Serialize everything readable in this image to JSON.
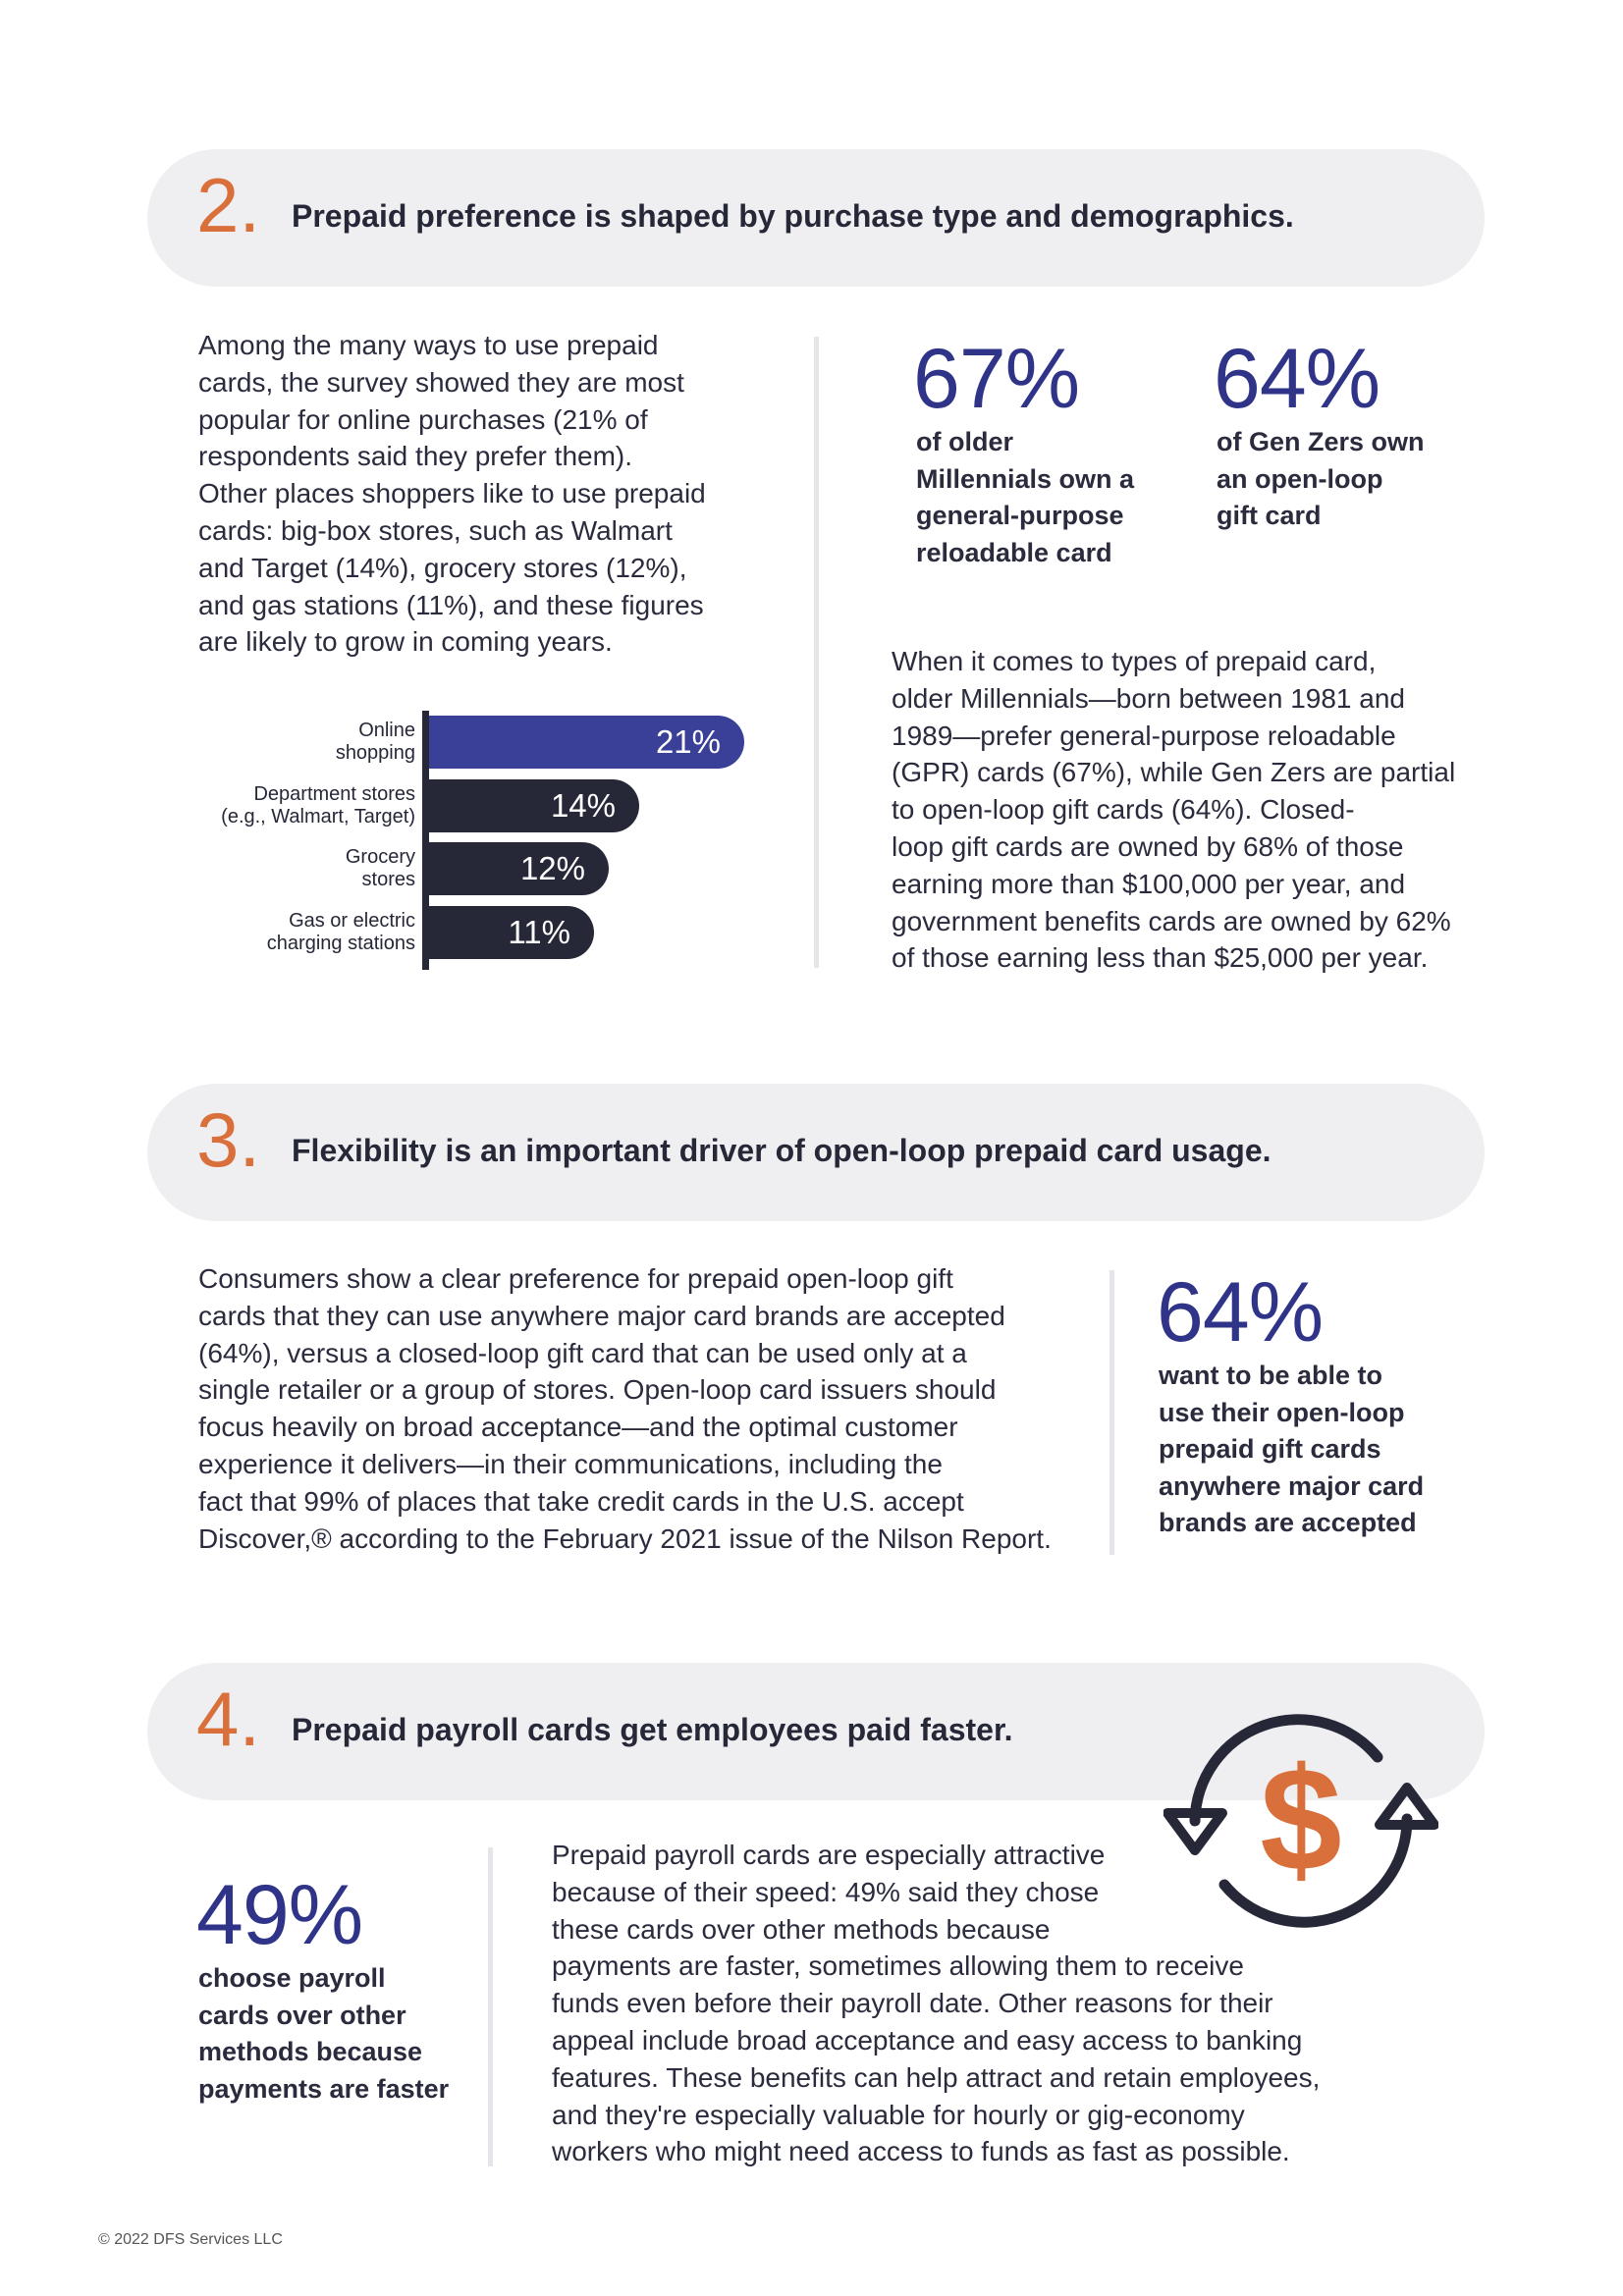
{
  "section2": {
    "number": "2.",
    "title": "Prepaid preference is shaped by purchase type and demographics.",
    "body_lines": [
      "Among the many ways to use prepaid",
      "cards, the survey showed they are most",
      "popular for online purchases (21% of",
      "respondents said they prefer them).",
      "Other places shoppers like to use prepaid",
      "cards: big-box stores, such as Walmart",
      "and Target (14%), grocery stores (12%),",
      "and gas stations (11%), and these figures",
      "are likely to grow in coming years."
    ],
    "stat1": {
      "value": "67%",
      "lines": [
        "of older",
        "Millennials own a",
        "general-purpose",
        "reloadable card"
      ]
    },
    "stat2": {
      "value": "64%",
      "lines": [
        "of Gen Zers own",
        "an open-loop",
        "gift card"
      ]
    },
    "right_body_lines": [
      "When it comes to types of prepaid card,",
      "older Millennials—born between 1981 and",
      "1989—prefer general-purpose reloadable",
      "(GPR) cards (67%), while Gen Zers are partial",
      "to open-loop gift cards (64%). Closed-",
      "loop gift cards are owned by 68% of those",
      "earning more than $100,000 per year, and",
      "government benefits cards are owned by 62%",
      "of those earning less than $25,000 per year."
    ]
  },
  "chart_data": {
    "type": "bar",
    "orientation": "horizontal",
    "categories": [
      "Online shopping",
      "Department stores (e.g., Walmart, Target)",
      "Grocery stores",
      "Gas or electric charging stations"
    ],
    "category_lines": [
      [
        "Online",
        "shopping"
      ],
      [
        "Department stores",
        "(e.g., Walmart, Target)"
      ],
      [
        "Grocery",
        "stores"
      ],
      [
        "Gas or electric",
        "charging stations"
      ]
    ],
    "values": [
      21,
      14,
      12,
      11
    ],
    "value_labels": [
      "21%",
      "14%",
      "12%",
      "11%"
    ],
    "colors": [
      "#3a3f97",
      "#262838",
      "#262838",
      "#262838"
    ],
    "xlim": [
      0,
      21
    ],
    "grid": false
  },
  "section3": {
    "number": "3.",
    "title": "Flexibility is an important driver of open-loop prepaid card usage.",
    "body_lines": [
      "Consumers show a clear preference for prepaid open-loop gift",
      "cards that they can use anywhere major card brands are accepted",
      "(64%), versus a closed-loop gift card that can be used only at a",
      "single retailer or a group of stores. Open-loop card issuers should",
      "focus heavily on broad acceptance—and the optimal customer",
      "experience it delivers—in their communications, including the",
      "fact that 99% of places that take credit cards in the U.S. accept",
      "Discover,® according to the February 2021 issue of the Nilson Report."
    ],
    "stat": {
      "value": "64%",
      "lines": [
        "want to be able to",
        "use their open-loop",
        "prepaid gift cards",
        "anywhere major card",
        "brands are accepted"
      ]
    }
  },
  "section4": {
    "number": "4.",
    "title": "Prepaid payroll cards get employees paid faster.",
    "stat": {
      "value": "49%",
      "lines": [
        "choose payroll",
        "cards over other",
        "methods because",
        "payments are faster"
      ]
    },
    "body_lines": [
      "Prepaid payroll cards are especially attractive",
      "because of their speed: 49% said they chose",
      "these cards over other methods because",
      "payments are faster, sometimes allowing them to receive",
      "funds even before their payroll date. Other reasons for their",
      "appeal include broad acceptance and easy access to banking",
      "features. These benefits can help attract and retain employees,",
      "and they're especially valuable for hourly or gig-economy",
      "workers who might need access to funds as fast as possible."
    ],
    "icon": "dollar-cycle-icon",
    "icon_glyph": "$",
    "icon_colors": {
      "arrows": "#262838",
      "dollar": "#d9703c"
    }
  },
  "footer": {
    "copyright": "© 2022 DFS Services LLC"
  },
  "colors": {
    "accent_orange": "#d9703c",
    "stat_blue": "#2f3489",
    "bar_highlight": "#3a3f97",
    "bar_dark": "#262838",
    "banner_gray": "#efeff2"
  }
}
